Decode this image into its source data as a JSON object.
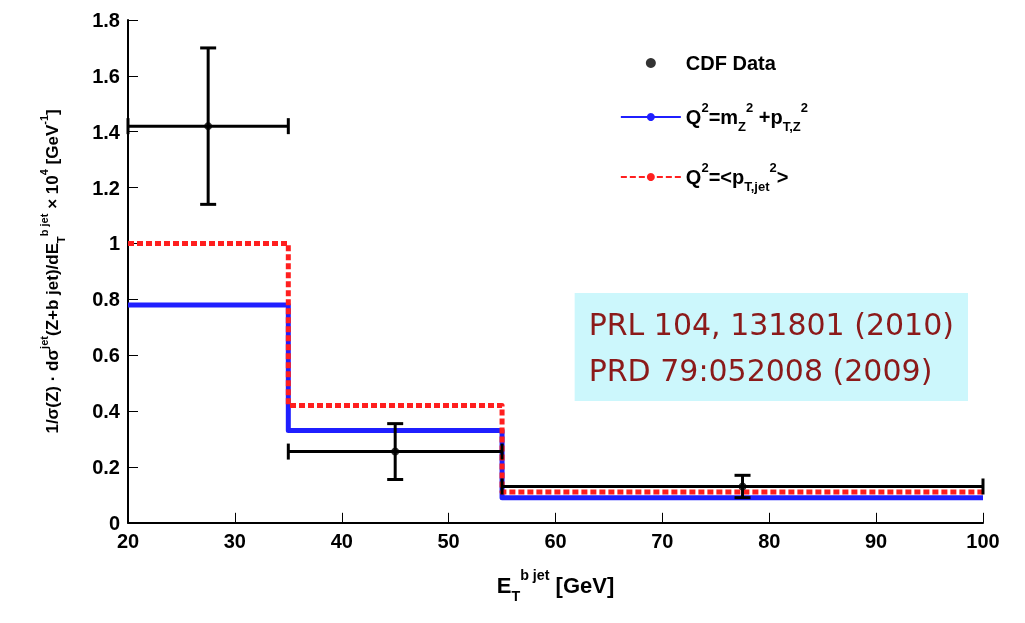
{
  "chart_data": {
    "type": "step",
    "xlabel": "E$_{T}$$^{b jet}$ [GeV]",
    "ylabel": "1/σ(Z) · dσ$^{jet}$(Z+b jet)/dE$_{T}$$^{b jet}$ × 10$^{4}$ [GeV$^{-1}$]",
    "series": [
      {
        "name": "CDF Data",
        "type": "scatter",
        "color": "#000000",
        "x": [
          27.5,
          45,
          77.5
        ],
        "values": [
          1.42,
          0.255,
          0.13
        ],
        "errors": [
          0.28,
          0.1,
          0.04
        ],
        "xerrors": [
          7.5,
          10,
          22.5
        ],
        "marker": "circle"
      },
      {
        "name": "Q$^{2}$=m$_{Z}$$^{2}$ +p$_{T,Z}$$^{2}$",
        "color": "#1f1fff",
        "x": [
          20,
          35,
          55,
          100
        ],
        "values": [
          0.78,
          0.33,
          0.09,
          0.09
        ],
        "line_style": "solid"
      },
      {
        "name": "Q$^{2}$=<p$_{T,jet}$$^{2}$>",
        "color": "#ff1f1f",
        "x": [
          20,
          35,
          55,
          100
        ],
        "values": [
          1.0,
          0.42,
          0.11,
          0.11
        ],
        "line_style": "dashed"
      }
    ],
    "xlim": [
      20,
      100
    ],
    "xticks": [
      20,
      30,
      40,
      50,
      60,
      70,
      80,
      90,
      100
    ],
    "ylim": [
      0,
      1.8
    ],
    "yticks": [
      0,
      0.2,
      0.4,
      0.6,
      0.8,
      1,
      1.2,
      1.4,
      1.6,
      1.8
    ],
    "grid": false,
    "legend": "top right",
    "annotations": [
      "PRL 104, 131801 (2010)",
      "PRD 79:052008 (2009)"
    ]
  }
}
